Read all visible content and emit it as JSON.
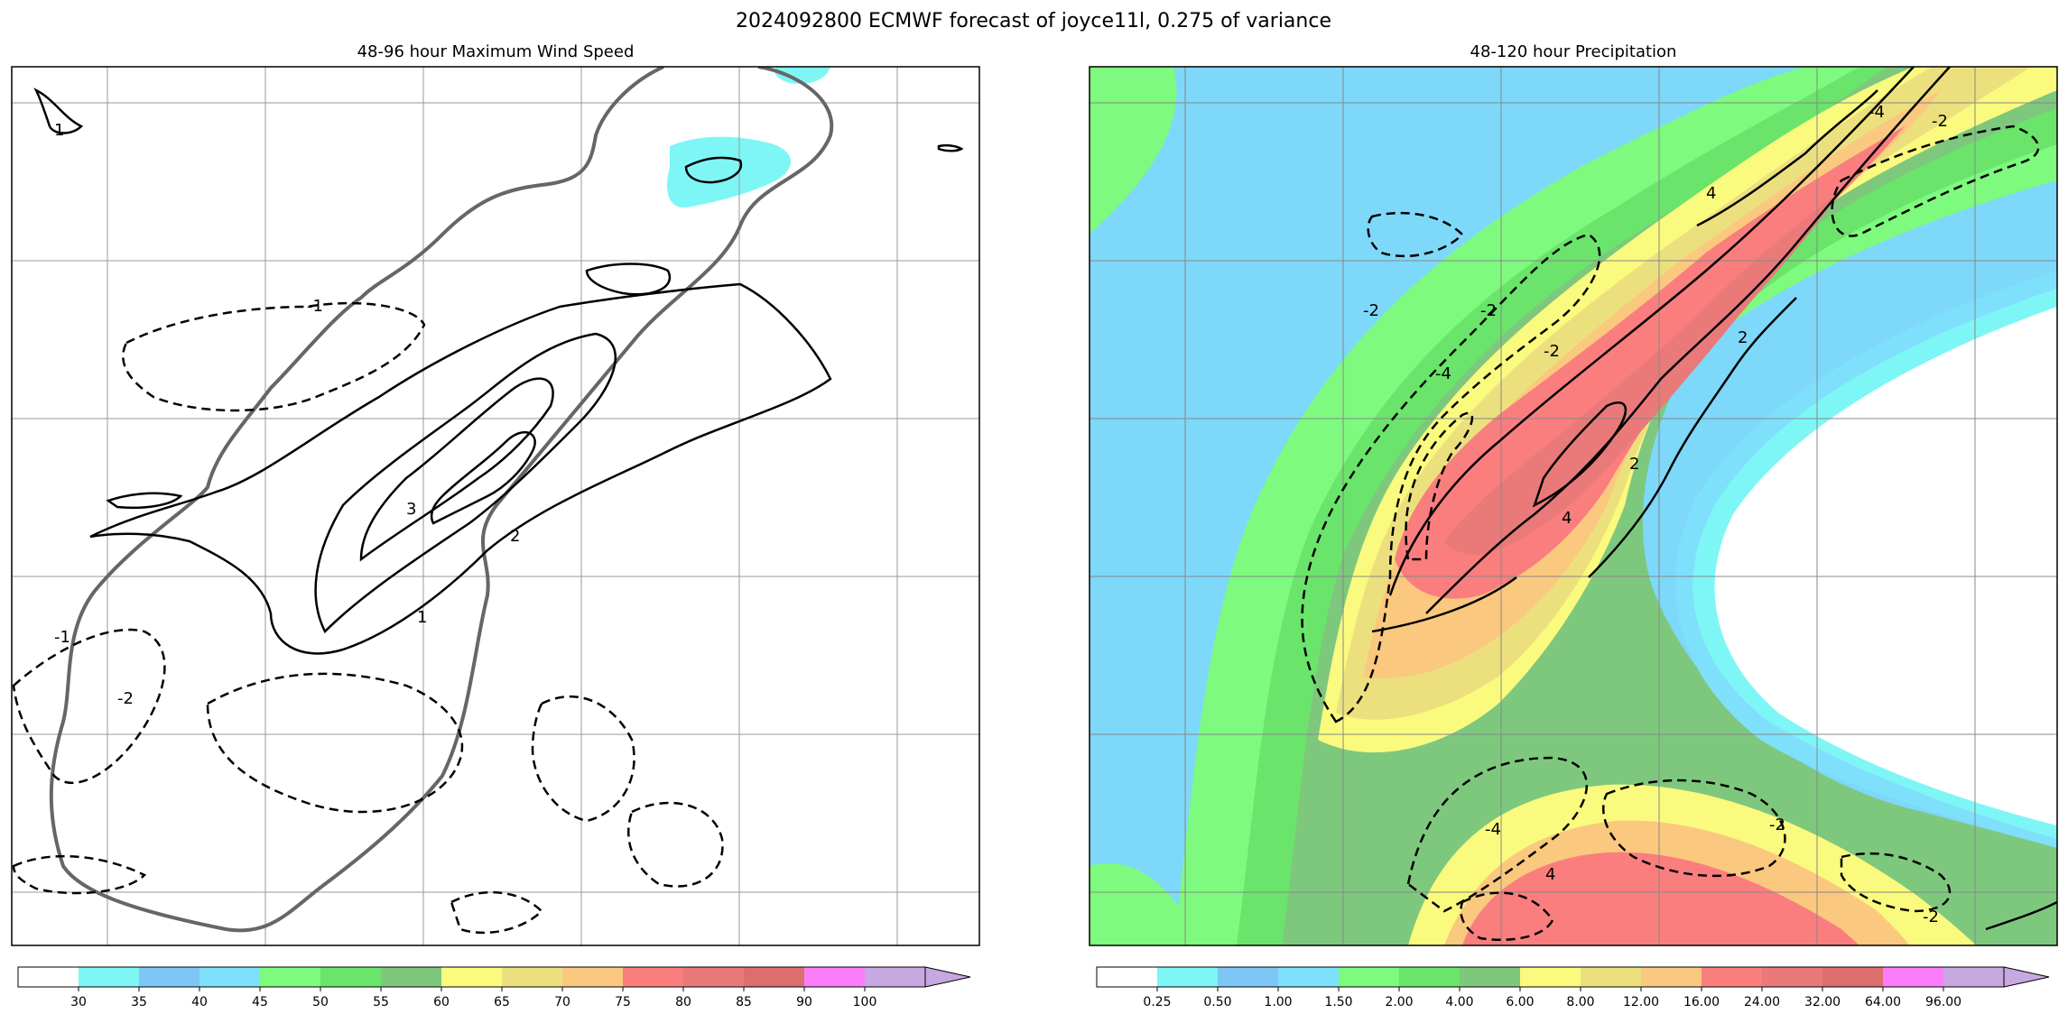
{
  "figure": {
    "title": "2024092800 ECMWF forecast of joyce11l, 0.275 of variance"
  },
  "chart_data": [
    {
      "type": "contour",
      "title": "48-96 hour Maximum Wind Speed",
      "contour_labels": [
        "1",
        "2",
        "3",
        "-1",
        "-2",
        "-1",
        "1"
      ],
      "colorbar": {
        "ticks": [
          "30",
          "35",
          "40",
          "45",
          "50",
          "55",
          "60",
          "65",
          "70",
          "75",
          "80",
          "85",
          "90",
          "100"
        ],
        "colors": [
          "#ffffff",
          "#7ef6f6",
          "#7ec6f6",
          "#7ee0fa",
          "#7efa7e",
          "#6ae46a",
          "#7ec87e",
          "#fafa7e",
          "#ece07e",
          "#fac87e",
          "#fa7e7e",
          "#ea7a7a",
          "#de6e6e",
          "#fa7efa",
          "#c8a8e0"
        ]
      },
      "grid": true
    },
    {
      "type": "contour",
      "title": "48-120 hour Precipitation",
      "contour_labels": [
        "-4",
        "-2",
        "-2",
        "-2",
        "2",
        "4",
        "2",
        "-4",
        "4",
        "4",
        "-4",
        "-2",
        "-2",
        "-2"
      ],
      "colorbar": {
        "ticks": [
          "0.25",
          "0.50",
          "1.00",
          "1.50",
          "2.00",
          "4.00",
          "6.00",
          "8.00",
          "12.00",
          "16.00",
          "24.00",
          "32.00",
          "64.00",
          "96.00"
        ],
        "colors": [
          "#ffffff",
          "#7ef6f6",
          "#7ec6f6",
          "#7ee0fa",
          "#7efa7e",
          "#6ae46a",
          "#7ec87e",
          "#fafa7e",
          "#ece07e",
          "#fac87e",
          "#fa7e7e",
          "#ea7a7a",
          "#de6e6e",
          "#fa7efa",
          "#c8a8e0"
        ]
      },
      "grid": true
    }
  ]
}
